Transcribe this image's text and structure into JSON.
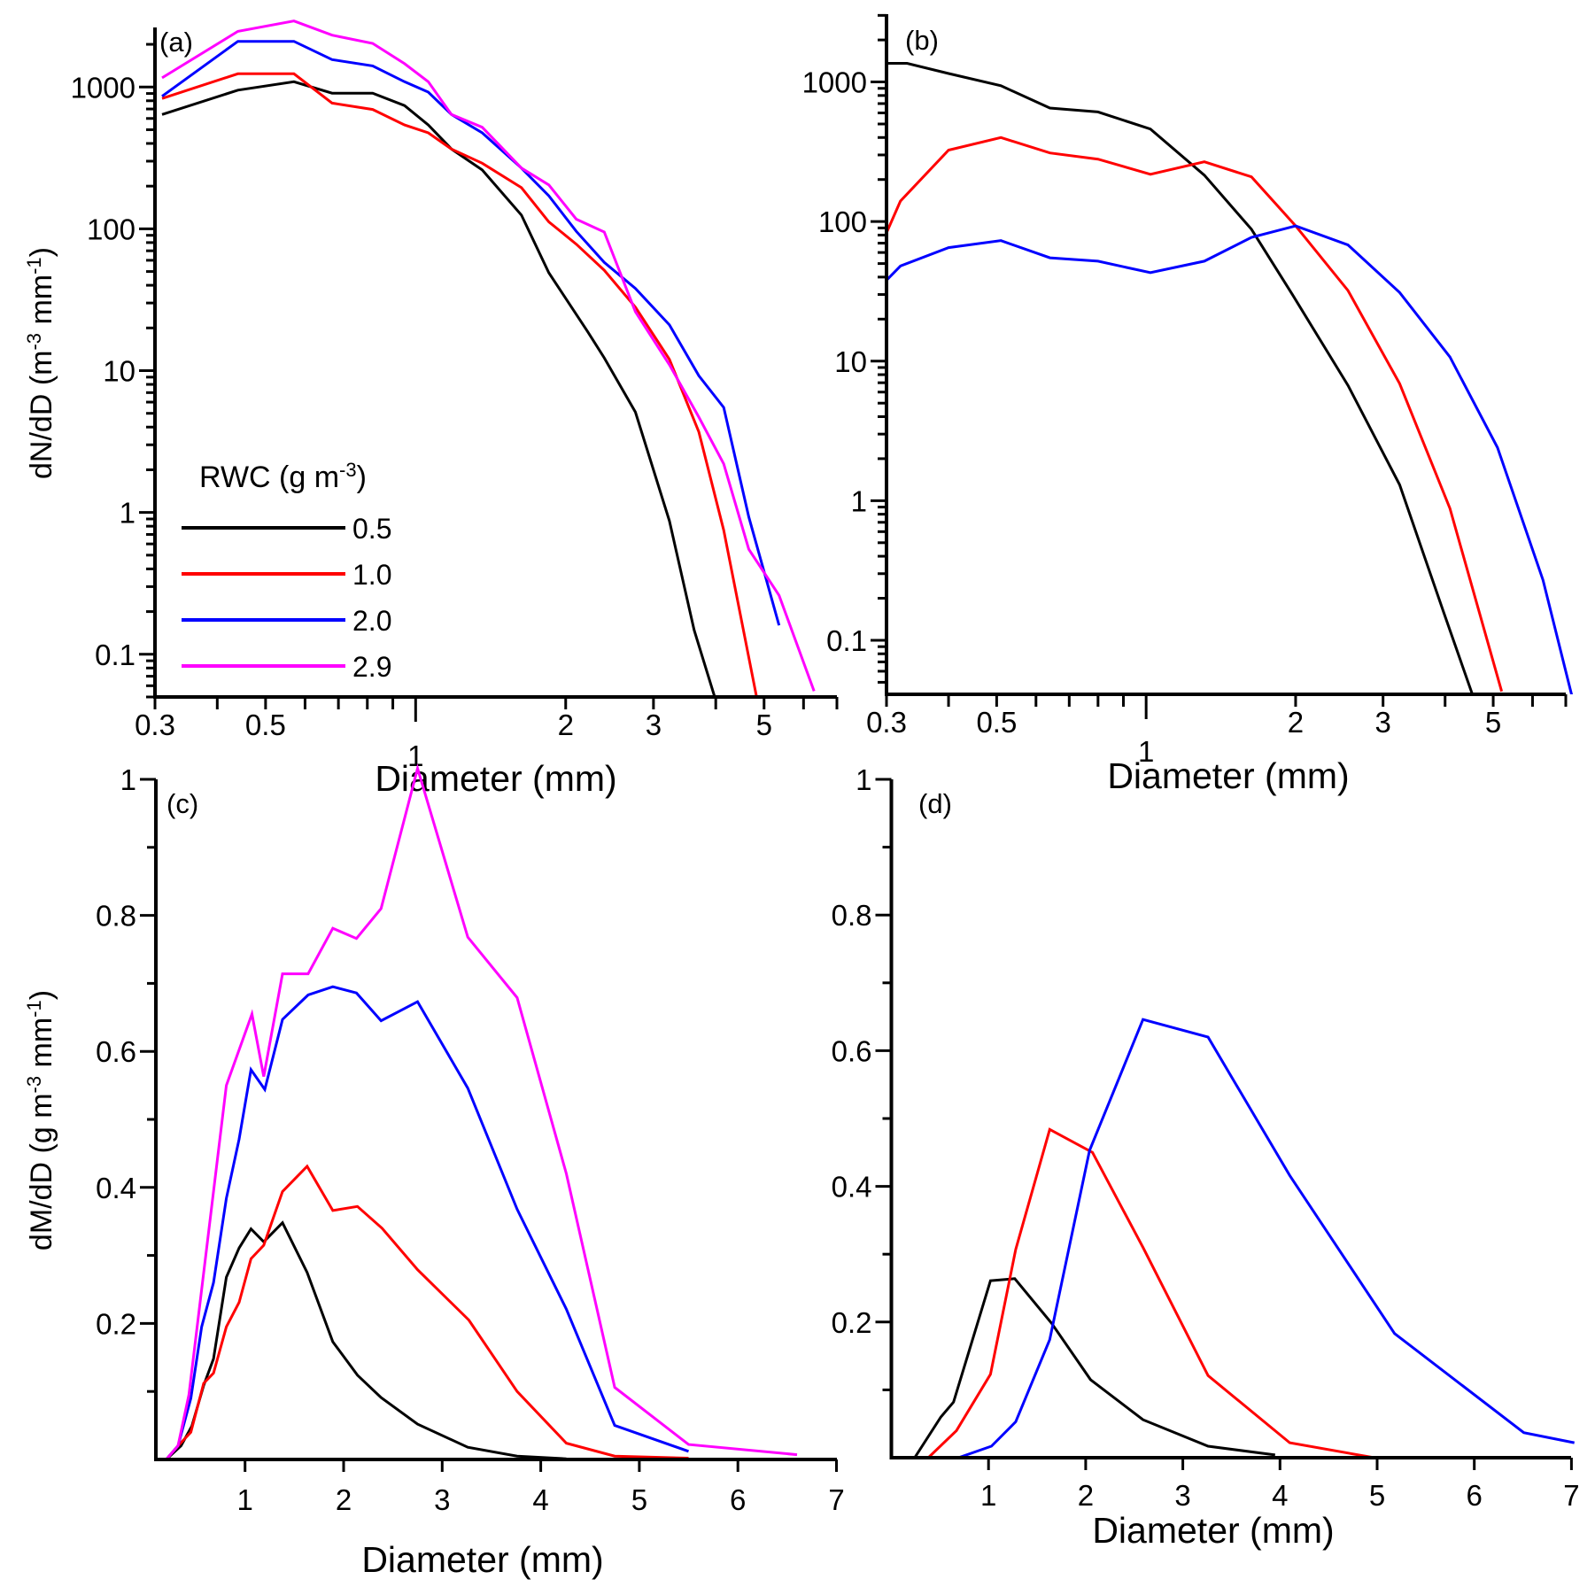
{
  "chart_data": [
    {
      "id": "a",
      "panel_label": "(a)",
      "type": "line",
      "xscale": "log",
      "yscale": "log",
      "xlabel": "Diameter (mm)",
      "ylabel": "dN/dD  (m-3 mm-1)",
      "ylabel_parts": [
        "dN/dD  (m",
        "-3",
        " mm",
        "-1",
        ")"
      ],
      "xlim": [
        0.3,
        7
      ],
      "ylim": [
        0.05,
        2630
      ],
      "xticks": [
        0.3,
        0.5,
        1,
        2,
        3,
        5
      ],
      "xtick_labels": [
        "0.3",
        "0.5",
        "1",
        "2",
        "3",
        "5"
      ],
      "yticks": [
        0.1,
        1,
        10,
        100,
        1000
      ],
      "ytick_labels": [
        "0.1",
        "1",
        "10",
        "100",
        "1000"
      ],
      "legend": {
        "title_parts": [
          "RWC (g m",
          "-3",
          ")"
        ],
        "position": "lower-left",
        "entries": [
          "0.5",
          "1.0",
          "2.0",
          "2.9"
        ]
      },
      "series": [
        {
          "name": "0.5",
          "color": "#000000",
          "x": [
            0.31,
            0.44,
            0.57,
            0.68,
            0.82,
            0.95,
            1.06,
            1.18,
            1.36,
            1.63,
            1.85,
            2.21,
            2.39,
            2.76,
            3.23,
            3.62,
            3.98
          ],
          "y": [
            640,
            950,
            1090,
            905,
            905,
            740,
            540,
            365,
            260,
            125,
            49,
            19,
            12.3,
            5.1,
            0.87,
            0.148,
            0.05
          ]
        },
        {
          "name": "1.0",
          "color": "#ff0000",
          "x": [
            0.31,
            0.44,
            0.57,
            0.68,
            0.82,
            0.95,
            1.06,
            1.18,
            1.36,
            1.63,
            1.85,
            2.1,
            2.39,
            2.76,
            3.23,
            3.7,
            4.15,
            4.83
          ],
          "y": [
            830,
            1240,
            1240,
            770,
            695,
            540,
            475,
            365,
            290,
            195,
            112,
            78,
            51,
            28,
            12,
            3.7,
            0.75,
            0.05
          ]
        },
        {
          "name": "2.0",
          "color": "#0000ff",
          "x": [
            0.31,
            0.44,
            0.57,
            0.68,
            0.82,
            0.95,
            1.06,
            1.18,
            1.36,
            1.63,
            1.85,
            2.1,
            2.39,
            2.76,
            3.23,
            3.7,
            4.15,
            4.66,
            5.36
          ],
          "y": [
            860,
            2100,
            2100,
            1560,
            1410,
            1090,
            920,
            640,
            475,
            268,
            171,
            96,
            58,
            38,
            21,
            9.2,
            5.5,
            0.93,
            0.16
          ]
        },
        {
          "name": "2.9",
          "color": "#ff00ff",
          "x": [
            0.31,
            0.44,
            0.57,
            0.68,
            0.82,
            0.95,
            1.06,
            1.18,
            1.36,
            1.63,
            1.85,
            2.1,
            2.39,
            2.76,
            3.23,
            3.7,
            4.15,
            4.66,
            5.36,
            6.3
          ],
          "y": [
            1160,
            2470,
            2920,
            2320,
            2030,
            1460,
            1090,
            640,
            520,
            268,
            204,
            117,
            95,
            26,
            11,
            4.7,
            2.2,
            0.55,
            0.26,
            0.055
          ]
        }
      ]
    },
    {
      "id": "b",
      "panel_label": "(b)",
      "type": "line",
      "xscale": "log",
      "yscale": "log",
      "xlabel": "Diameter (mm)",
      "ylabel": "",
      "xlim": [
        0.3,
        7
      ],
      "ylim": [
        0.041,
        3060
      ],
      "xticks": [
        0.3,
        0.5,
        1,
        2,
        3,
        5
      ],
      "xtick_labels": [
        "0.3",
        "0.5",
        "1",
        "2",
        "3",
        "5"
      ],
      "yticks": [
        0.1,
        1,
        10,
        100,
        1000
      ],
      "ytick_labels": [
        "0.1",
        "1",
        "10",
        "100",
        "1000"
      ],
      "series": [
        {
          "name": "0.5",
          "color": "#000000",
          "x": [
            0.3,
            0.33,
            0.4,
            0.51,
            0.64,
            0.8,
            1.02,
            1.31,
            1.63,
            1.97,
            2.55,
            3.24,
            3.97,
            4.55
          ],
          "y": [
            1360,
            1360,
            1150,
            940,
            650,
            610,
            460,
            215,
            88,
            30,
            6.7,
            1.3,
            0.16,
            0.04
          ]
        },
        {
          "name": "1.0",
          "color": "#ff0000",
          "x": [
            0.3,
            0.32,
            0.4,
            0.51,
            0.64,
            0.8,
            1.02,
            1.31,
            1.63,
            2.0,
            2.55,
            3.24,
            4.09,
            5.2
          ],
          "y": [
            83,
            140,
            325,
            400,
            310,
            280,
            218,
            268,
            209,
            93,
            32,
            6.9,
            0.88,
            0.043
          ]
        },
        {
          "name": "2.0",
          "color": "#0000ff",
          "x": [
            0.3,
            0.32,
            0.4,
            0.51,
            0.64,
            0.8,
            1.02,
            1.31,
            1.63,
            2.0,
            2.55,
            3.24,
            4.09,
            5.1,
            6.3,
            7.2
          ],
          "y": [
            38,
            48,
            65,
            73,
            55,
            52,
            43,
            52,
            77,
            93,
            68,
            31,
            10.7,
            2.4,
            0.27,
            0.04
          ]
        }
      ]
    },
    {
      "id": "c",
      "panel_label": "(c)",
      "type": "line",
      "xscale": "linear",
      "yscale": "linear",
      "xlabel": "Diameter (mm)",
      "ylabel": "dM/dD  (g m-3 mm-1)",
      "ylabel_parts": [
        "dM/dD  (g m",
        "-3",
        " mm",
        "-1",
        ")"
      ],
      "xlim": [
        0.1,
        7
      ],
      "ylim": [
        0,
        1
      ],
      "xticks": [
        1,
        2,
        3,
        4,
        5,
        6,
        7
      ],
      "xtick_labels": [
        "1",
        "2",
        "3",
        "4",
        "5",
        "6",
        "7"
      ],
      "yticks": [
        0.2,
        0.4,
        0.6,
        0.8,
        1
      ],
      "ytick_labels": [
        "0.2",
        "0.4",
        "0.6",
        "0.8",
        "1"
      ],
      "yminor": [
        0.1,
        0.3,
        0.5,
        0.7,
        0.9
      ],
      "series": [
        {
          "name": "0.5",
          "color": "#000000",
          "x": [
            0.2,
            0.35,
            0.46,
            0.58,
            0.68,
            0.81,
            0.94,
            1.06,
            1.19,
            1.38,
            1.63,
            1.89,
            2.14,
            2.38,
            2.75,
            3.26,
            3.76,
            4.26
          ],
          "y": [
            0.0,
            0.02,
            0.049,
            0.109,
            0.148,
            0.268,
            0.311,
            0.339,
            0.32,
            0.348,
            0.275,
            0.173,
            0.124,
            0.091,
            0.052,
            0.018,
            0.005,
            0.001
          ]
        },
        {
          "name": "1.0",
          "color": "#ff0000",
          "x": [
            0.2,
            0.32,
            0.45,
            0.58,
            0.68,
            0.81,
            0.94,
            1.06,
            1.19,
            1.38,
            1.63,
            1.89,
            2.14,
            2.39,
            2.75,
            3.27,
            3.76,
            4.26,
            4.75,
            5.5
          ],
          "y": [
            0.0,
            0.02,
            0.04,
            0.112,
            0.127,
            0.195,
            0.231,
            0.295,
            0.315,
            0.394,
            0.431,
            0.366,
            0.372,
            0.34,
            0.279,
            0.205,
            0.1,
            0.024,
            0.005,
            0.002
          ]
        },
        {
          "name": "2.0",
          "color": "#0000ff",
          "x": [
            0.2,
            0.32,
            0.45,
            0.56,
            0.68,
            0.81,
            0.94,
            1.06,
            1.2,
            1.38,
            1.64,
            1.89,
            2.13,
            2.38,
            2.75,
            3.26,
            3.76,
            4.26,
            4.75,
            5.5
          ],
          "y": [
            0.0,
            0.02,
            0.09,
            0.195,
            0.26,
            0.384,
            0.471,
            0.573,
            0.544,
            0.647,
            0.683,
            0.695,
            0.686,
            0.645,
            0.673,
            0.546,
            0.368,
            0.221,
            0.05,
            0.012
          ]
        },
        {
          "name": "2.9",
          "color": "#ff00ff",
          "x": [
            0.2,
            0.32,
            0.43,
            0.81,
            1.07,
            1.19,
            1.38,
            1.64,
            1.89,
            2.13,
            2.38,
            2.75,
            3.26,
            3.76,
            4.26,
            4.75,
            5.5,
            6.6
          ],
          "y": [
            0.0,
            0.02,
            0.095,
            0.55,
            0.655,
            0.563,
            0.714,
            0.714,
            0.781,
            0.766,
            0.81,
            1.016,
            0.768,
            0.679,
            0.42,
            0.106,
            0.022,
            0.007
          ]
        }
      ]
    },
    {
      "id": "d",
      "panel_label": "(d)",
      "type": "line",
      "xscale": "linear",
      "yscale": "linear",
      "xlabel": "Diameter (mm)",
      "ylabel": "",
      "xlim": [
        0,
        7
      ],
      "ylim": [
        0,
        1
      ],
      "xticks": [
        1,
        2,
        3,
        4,
        5,
        6,
        7
      ],
      "xtick_labels": [
        "1",
        "2",
        "3",
        "4",
        "5",
        "6",
        "7"
      ],
      "yticks": [
        0.2,
        0.4,
        0.6,
        0.8,
        1
      ],
      "ytick_labels": [
        "0.2",
        "0.4",
        "0.6",
        "0.8",
        "1"
      ],
      "yminor": [
        0.1,
        0.3,
        0.5,
        0.7,
        0.9
      ],
      "series": [
        {
          "name": "0.5",
          "color": "#000000",
          "x": [
            0.24,
            0.51,
            0.64,
            1.02,
            1.27,
            1.65,
            2.05,
            2.59,
            3.26,
            3.95
          ],
          "y": [
            0.0,
            0.06,
            0.082,
            0.261,
            0.264,
            0.198,
            0.115,
            0.056,
            0.017,
            0.004
          ]
        },
        {
          "name": "1.0",
          "color": "#ff0000",
          "x": [
            0.38,
            0.67,
            1.02,
            1.28,
            1.63,
            2.07,
            2.59,
            3.26,
            4.1,
            4.97
          ],
          "y": [
            0.0,
            0.04,
            0.123,
            0.307,
            0.484,
            0.45,
            0.31,
            0.121,
            0.022,
            0.0
          ]
        },
        {
          "name": "2.0",
          "color": "#0000ff",
          "x": [
            0.69,
            1.03,
            1.28,
            1.63,
            2.04,
            2.59,
            3.26,
            4.1,
            5.18,
            6.51,
            7.03
          ],
          "y": [
            0.0,
            0.017,
            0.053,
            0.174,
            0.453,
            0.646,
            0.62,
            0.416,
            0.183,
            0.037,
            0.022
          ]
        }
      ]
    }
  ]
}
